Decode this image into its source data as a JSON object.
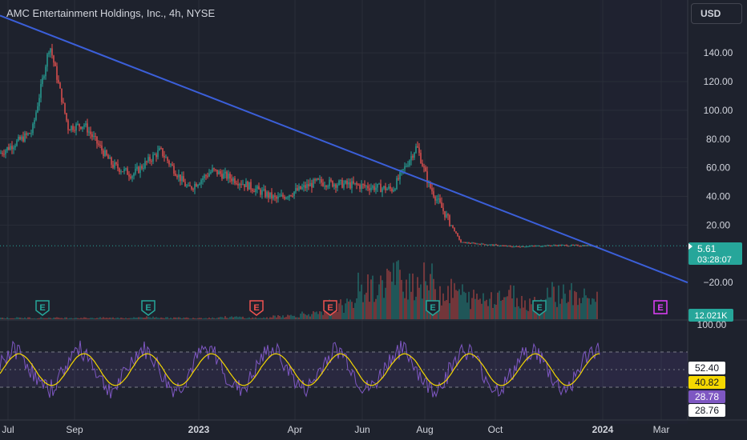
{
  "header": {
    "title": "AMC Entertainment Holdings, Inc., 4h, NYSE",
    "currency": "USD"
  },
  "colors": {
    "background": "#1e222d",
    "up": "#26a69a",
    "down": "#ef5350",
    "trendline": "#3b5fd9",
    "rsi_line": "#7e57c2",
    "rsi_ma": "#f5d800",
    "grid": "#2a2e39",
    "text": "#d1d4dc"
  },
  "chart_data": [
    {
      "type": "candlestick",
      "ylim": [
        -25,
        150
      ],
      "y_ticks": [
        "140.00",
        "120.00",
        "100.00",
        "80.00",
        "60.00",
        "40.00",
        "20.00",
        "−20.00"
      ],
      "x_ticks": [
        "Jul",
        "Sep",
        "2023",
        "Apr",
        "Jun",
        "Aug",
        "Oct",
        "2024",
        "Mar"
      ],
      "price_path": [
        [
          "Jul",
          70
        ],
        [
          "Aug (early)",
          85
        ],
        [
          "Aug (peak)",
          146
        ],
        [
          "Aug (drop)",
          88
        ],
        [
          "Sep",
          90
        ],
        [
          "Oct",
          62
        ],
        [
          "Nov",
          55
        ],
        [
          "Dec",
          72
        ],
        [
          "2023",
          45
        ],
        [
          "Feb",
          58
        ],
        [
          "Mar",
          50
        ],
        [
          "Apr",
          38
        ],
        [
          "May",
          50
        ],
        [
          "Jun",
          48
        ],
        [
          "Jul",
          45
        ],
        [
          "Aug (spike)",
          75
        ],
        [
          "Aug",
          48
        ],
        [
          "Aug (late)",
          28
        ],
        [
          "Sep",
          8
        ],
        [
          "Oct",
          5
        ],
        [
          "Nov",
          6
        ],
        [
          "Dec",
          5.6
        ]
      ],
      "last_price": "5.61",
      "countdown": "03:28:07",
      "earnings_markers": [
        {
          "month": "Aug",
          "type": "E",
          "kind": "reported-positive"
        },
        {
          "month": "Nov",
          "type": "E",
          "kind": "reported-positive"
        },
        {
          "month": "Mar",
          "type": "E",
          "kind": "reported-negative"
        },
        {
          "month": "May",
          "type": "E",
          "kind": "reported-negative"
        },
        {
          "month": "Aug",
          "type": "E",
          "kind": "reported-positive"
        },
        {
          "month": "Nov",
          "type": "E",
          "kind": "reported-positive"
        },
        {
          "month": "Feb",
          "type": "E",
          "kind": "upcoming"
        }
      ],
      "trendline": {
        "start": [
          "Jun",
          166
        ],
        "end": [
          "Mar",
          -20
        ]
      },
      "grid": true
    },
    {
      "type": "bar",
      "name": "Volume",
      "last_label": "12.021K",
      "volume_profile": [
        2,
        2,
        2,
        2,
        2,
        3,
        2,
        2,
        3,
        2,
        5,
        8,
        20,
        45,
        60,
        55,
        40,
        30,
        35,
        25,
        38,
        30
      ]
    },
    {
      "type": "line",
      "name": "RSI",
      "ylim": [
        0,
        100
      ],
      "y_ticks": [
        "100.00"
      ],
      "bands": [
        70,
        30
      ],
      "labels": [
        "52.40",
        "40.82",
        "28.78",
        "28.76"
      ]
    }
  ]
}
